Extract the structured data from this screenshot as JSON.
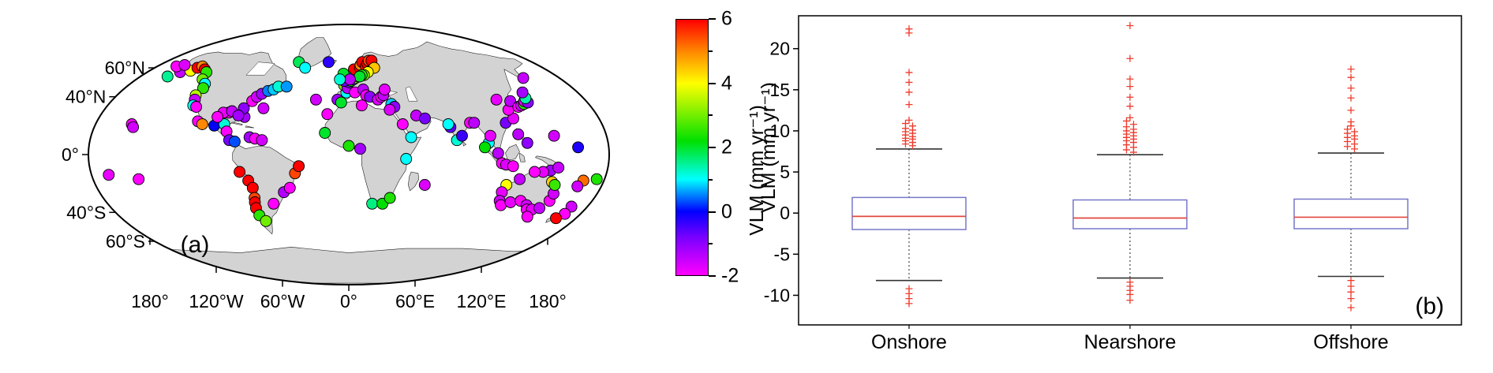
{
  "figure": {
    "background": "#ffffff"
  },
  "chart_data": [
    {
      "type": "scatter",
      "name": "vlm-world-map",
      "panel_label": "(a)",
      "land_color": "#d3d3d3",
      "ocean_color": "#ffffff",
      "outline_color": "#000000",
      "point_radius": 7,
      "lat_ticks": [
        {
          "label": "60°N",
          "lat": 60
        },
        {
          "label": "40°N",
          "lat": 40
        },
        {
          "label": "0°",
          "lat": 0
        },
        {
          "label": "40°S",
          "lat": -40
        },
        {
          "label": "60°S",
          "lat": -60
        }
      ],
      "lon_ticks": [
        {
          "label": "180°",
          "lon": -180
        },
        {
          "label": "120°W",
          "lon": -120
        },
        {
          "label": "60°W",
          "lon": -60
        },
        {
          "label": "0°",
          "lon": 0
        },
        {
          "label": "60°E",
          "lon": 60
        },
        {
          "label": "120°E",
          "lon": 120
        },
        {
          "label": "180°",
          "lon": 180
        }
      ],
      "colorbar": {
        "label": "VLM (mm yr⁻¹)",
        "min": -2,
        "max": 6,
        "ticks": [
          6,
          4,
          2,
          0,
          -2
        ],
        "minor_ticks": [
          5,
          3,
          1,
          -1
        ],
        "stops": [
          {
            "v": -2,
            "c": "#ff00ff"
          },
          {
            "v": -0.8,
            "c": "#7700ff"
          },
          {
            "v": 0,
            "c": "#0000ff"
          },
          {
            "v": 1,
            "c": "#00ffff"
          },
          {
            "v": 2.2,
            "c": "#00e000"
          },
          {
            "v": 4,
            "c": "#ffff00"
          },
          {
            "v": 5,
            "c": "#ff8800"
          },
          {
            "v": 6,
            "c": "#ff0000"
          }
        ]
      },
      "points": [
        [
          -166,
          54,
          1.5
        ],
        [
          -160,
          57,
          -1.5
        ],
        [
          -152,
          58,
          4
        ],
        [
          -149,
          60,
          6
        ],
        [
          -146,
          61,
          5
        ],
        [
          -140,
          59,
          6
        ],
        [
          -135,
          57,
          2.5
        ],
        [
          -131,
          52,
          3
        ],
        [
          -125,
          49,
          1
        ],
        [
          -123,
          46,
          2.5
        ],
        [
          -124,
          41,
          3.5
        ],
        [
          -122,
          38,
          -1.5
        ],
        [
          -120,
          34,
          1
        ],
        [
          -117,
          33,
          -2
        ],
        [
          -110,
          23,
          -2
        ],
        [
          -106,
          21,
          5
        ],
        [
          -97,
          20,
          0
        ],
        [
          -90,
          21,
          1.2
        ],
        [
          -87,
          16,
          -2
        ],
        [
          -84,
          10,
          -0.8
        ],
        [
          -80,
          9,
          0.3
        ],
        [
          -70,
          12,
          -1.2
        ],
        [
          -66,
          11,
          -2
        ],
        [
          -61,
          10,
          -1.6
        ],
        [
          -77,
          26,
          -1.2
        ],
        [
          -80,
          32,
          -1
        ],
        [
          -76,
          37,
          -2
        ],
        [
          -74,
          40,
          -1.6
        ],
        [
          -71,
          42,
          -1.2
        ],
        [
          -67,
          44,
          0.5
        ],
        [
          -63,
          45,
          0.8
        ],
        [
          -60,
          47,
          1.2
        ],
        [
          -53,
          47,
          0.6
        ],
        [
          -90,
          29,
          -2
        ],
        [
          -94,
          29,
          -1.8
        ],
        [
          -97,
          26,
          -2
        ],
        [
          -88,
          30,
          -1.5
        ],
        [
          -82,
          27,
          -1.2
        ],
        [
          -65,
          32,
          -1.6
        ],
        [
          -52,
          64,
          1.8
        ],
        [
          -43,
          60,
          1
        ],
        [
          -21,
          64,
          -0.3
        ],
        [
          -157,
          21,
          -2
        ],
        [
          -155,
          19,
          -1.6
        ],
        [
          -170,
          -14,
          -1.8
        ],
        [
          -150,
          -17,
          -2
        ],
        [
          -172,
          61,
          -2
        ],
        [
          -166,
          62,
          -1.7
        ],
        [
          -77,
          -12,
          6
        ],
        [
          -72,
          -18,
          6
        ],
        [
          -70,
          -23,
          6
        ],
        [
          -71,
          -30,
          5.5
        ],
        [
          -72,
          -33,
          6
        ],
        [
          -73,
          -37,
          6
        ],
        [
          -73,
          -42,
          2.5
        ],
        [
          -70,
          -46,
          3
        ],
        [
          -58,
          -34,
          -2
        ],
        [
          -48,
          -26,
          -1.3
        ],
        [
          -43,
          -23,
          -2
        ],
        [
          -38,
          -13,
          5.5
        ],
        [
          -35,
          -8,
          6
        ],
        [
          -26,
          38,
          -1.6
        ],
        [
          -16,
          28,
          -2
        ],
        [
          -9,
          38,
          -1.2
        ],
        [
          -6,
          36,
          2
        ],
        [
          -2,
          43,
          1
        ],
        [
          -4,
          48,
          3
        ],
        [
          -1,
          46,
          -1.4
        ],
        [
          0,
          50,
          -0.8
        ],
        [
          2,
          51,
          2.2
        ],
        [
          4,
          52,
          -1
        ],
        [
          6,
          53,
          3
        ],
        [
          8,
          54,
          4.5
        ],
        [
          8,
          56,
          5
        ],
        [
          10,
          58,
          5.5
        ],
        [
          5,
          59,
          6
        ],
        [
          11,
          60,
          6
        ],
        [
          12,
          62,
          5
        ],
        [
          14,
          64,
          6
        ],
        [
          17,
          61,
          6
        ],
        [
          19,
          63,
          6
        ],
        [
          21,
          65,
          5.5
        ],
        [
          24,
          65,
          6
        ],
        [
          25,
          60,
          4.5
        ],
        [
          18,
          57,
          4
        ],
        [
          14,
          55,
          3.2
        ],
        [
          12,
          55,
          2.5
        ],
        [
          10,
          54,
          2
        ],
        [
          -4,
          51,
          -0.8
        ],
        [
          -2,
          54,
          0.6
        ],
        [
          -5,
          56,
          2
        ],
        [
          1,
          52,
          -1.4
        ],
        [
          -8,
          52,
          1.2
        ],
        [
          5,
          43,
          -2
        ],
        [
          12,
          45,
          -1.4
        ],
        [
          14,
          41,
          -2
        ],
        [
          17,
          40,
          -1
        ],
        [
          23,
          38,
          -1.7
        ],
        [
          26,
          40,
          -2
        ],
        [
          28,
          41,
          -1.5
        ],
        [
          33,
          35,
          0.8
        ],
        [
          35,
          33,
          -1
        ],
        [
          10,
          34,
          -2
        ],
        [
          31,
          31,
          -1.7
        ],
        [
          30,
          45,
          -1.8
        ],
        [
          39,
          21,
          -2
        ],
        [
          50,
          27,
          -1.5
        ],
        [
          56,
          25,
          -0.8
        ],
        [
          44,
          12,
          1
        ],
        [
          -17,
          15,
          2
        ],
        [
          0,
          6,
          2.4
        ],
        [
          8,
          4,
          -1.2
        ],
        [
          18,
          -34,
          1.6
        ],
        [
          26,
          -34,
          2.2
        ],
        [
          31,
          -30,
          2.4
        ],
        [
          40,
          -3,
          1
        ],
        [
          55,
          -21,
          -1.7
        ],
        [
          73,
          19,
          -0.6
        ],
        [
          72,
          21,
          1
        ],
        [
          76,
          10,
          1.2
        ],
        [
          80,
          13,
          -0.4
        ],
        [
          88,
          22,
          -2
        ],
        [
          91,
          22,
          -1.4
        ],
        [
          98,
          8,
          1
        ],
        [
          100,
          13,
          -1.8
        ],
        [
          104,
          1,
          -1.4
        ],
        [
          107,
          -6,
          -2
        ],
        [
          110,
          -7,
          -1.7
        ],
        [
          115,
          -8,
          -2
        ],
        [
          95,
          5,
          2.2
        ],
        [
          114,
          22,
          -0.8
        ],
        [
          121,
          25,
          -1.8
        ],
        [
          120,
          14,
          -1.4
        ],
        [
          125,
          8,
          -1
        ],
        [
          121,
          31,
          -2
        ],
        [
          117,
          38,
          -1.8
        ],
        [
          127,
          37,
          -1.4
        ],
        [
          130,
          33,
          -2
        ],
        [
          133,
          34,
          -1.6
        ],
        [
          136,
          35,
          2.5
        ],
        [
          138,
          37,
          -1.8
        ],
        [
          140,
          36,
          -1
        ],
        [
          141,
          39,
          1.4
        ],
        [
          143,
          43,
          -1.2
        ],
        [
          158,
          53,
          -1.5
        ],
        [
          145,
          13,
          -1.6
        ],
        [
          160,
          5,
          -0.2
        ],
        [
          168,
          -18,
          5.2
        ],
        [
          177,
          -17,
          2.4
        ],
        [
          166,
          -22,
          -1.6
        ],
        [
          142,
          -11,
          -1.2
        ],
        [
          137,
          -12,
          -1.8
        ],
        [
          131,
          -12,
          -2
        ],
        [
          122,
          -17,
          -1.5
        ],
        [
          114,
          -21,
          4
        ],
        [
          113,
          -26,
          -1.8
        ],
        [
          115,
          -32,
          -1.6
        ],
        [
          118,
          -35,
          -2
        ],
        [
          124,
          -33,
          -1.8
        ],
        [
          131,
          -32,
          -2
        ],
        [
          138,
          -35,
          -1.6
        ],
        [
          141,
          -38,
          -2
        ],
        [
          145,
          -38,
          -1.8
        ],
        [
          147,
          -43,
          -2
        ],
        [
          150,
          -37,
          -1.5
        ],
        [
          153,
          -32,
          -2
        ],
        [
          152,
          -27,
          -1.6
        ],
        [
          146,
          -19,
          4.4
        ],
        [
          149,
          -21,
          2.6
        ],
        [
          174,
          -36,
          -1.6
        ],
        [
          175,
          -41,
          -2
        ],
        [
          172,
          -44,
          6
        ],
        [
          147,
          -9,
          -1.5
        ]
      ]
    },
    {
      "type": "boxplot",
      "name": "vlm-distribution-boxplot",
      "panel_label": "(b)",
      "ylabel": "VLM (mm yr⁻¹)",
      "ylim": [
        -13.6,
        24
      ],
      "yticks": [
        20,
        15,
        10,
        5,
        0,
        -5,
        -10
      ],
      "categories": [
        "Onshore",
        "Nearshore",
        "Offshore"
      ],
      "boxes": [
        {
          "category": "Onshore",
          "q1": -2.0,
          "median": -0.4,
          "q3": 1.9,
          "whisker_low": -8.2,
          "whisker_high": 7.8,
          "outliers_high": [
            22.4,
            21.9,
            17.1,
            15.9,
            14.7,
            13.2,
            11.3,
            10.9,
            10.6,
            10.3,
            10.1,
            9.9,
            9.7,
            9.5,
            9.3,
            9.1,
            9.0,
            8.8,
            8.6,
            8.4,
            8.2
          ],
          "outliers_low": [
            -9.2,
            -9.8,
            -10.4,
            -11.0
          ]
        },
        {
          "category": "Nearshore",
          "q1": -1.9,
          "median": -0.6,
          "q3": 1.6,
          "whisker_low": -7.9,
          "whisker_high": 7.1,
          "outliers_high": [
            22.8,
            18.8,
            16.3,
            15.4,
            14.1,
            13.0,
            11.6,
            11.2,
            10.8,
            10.5,
            10.2,
            10.0,
            9.8,
            9.6,
            9.4,
            9.2,
            9.0,
            8.8,
            8.6,
            8.3,
            8.0,
            7.7,
            7.4
          ],
          "outliers_low": [
            -8.4,
            -8.9,
            -9.4,
            -9.9,
            -10.6
          ]
        },
        {
          "category": "Offshore",
          "q1": -1.9,
          "median": -0.5,
          "q3": 1.7,
          "whisker_low": -7.7,
          "whisker_high": 7.3,
          "outliers_high": [
            17.5,
            16.5,
            15.2,
            14.0,
            12.5,
            11.1,
            10.6,
            10.2,
            9.9,
            9.7,
            9.4,
            9.2,
            9.0,
            8.7,
            8.4,
            8.1,
            7.8
          ],
          "outliers_low": [
            -8.2,
            -8.9,
            -9.6,
            -10.4,
            -11.5
          ]
        }
      ],
      "colors": {
        "box": "#7777cc",
        "median": "#e0483e",
        "outlier": "#ef3b2c",
        "whisker": "#444444",
        "cap": "#333333",
        "axis": "#000000"
      }
    }
  ]
}
